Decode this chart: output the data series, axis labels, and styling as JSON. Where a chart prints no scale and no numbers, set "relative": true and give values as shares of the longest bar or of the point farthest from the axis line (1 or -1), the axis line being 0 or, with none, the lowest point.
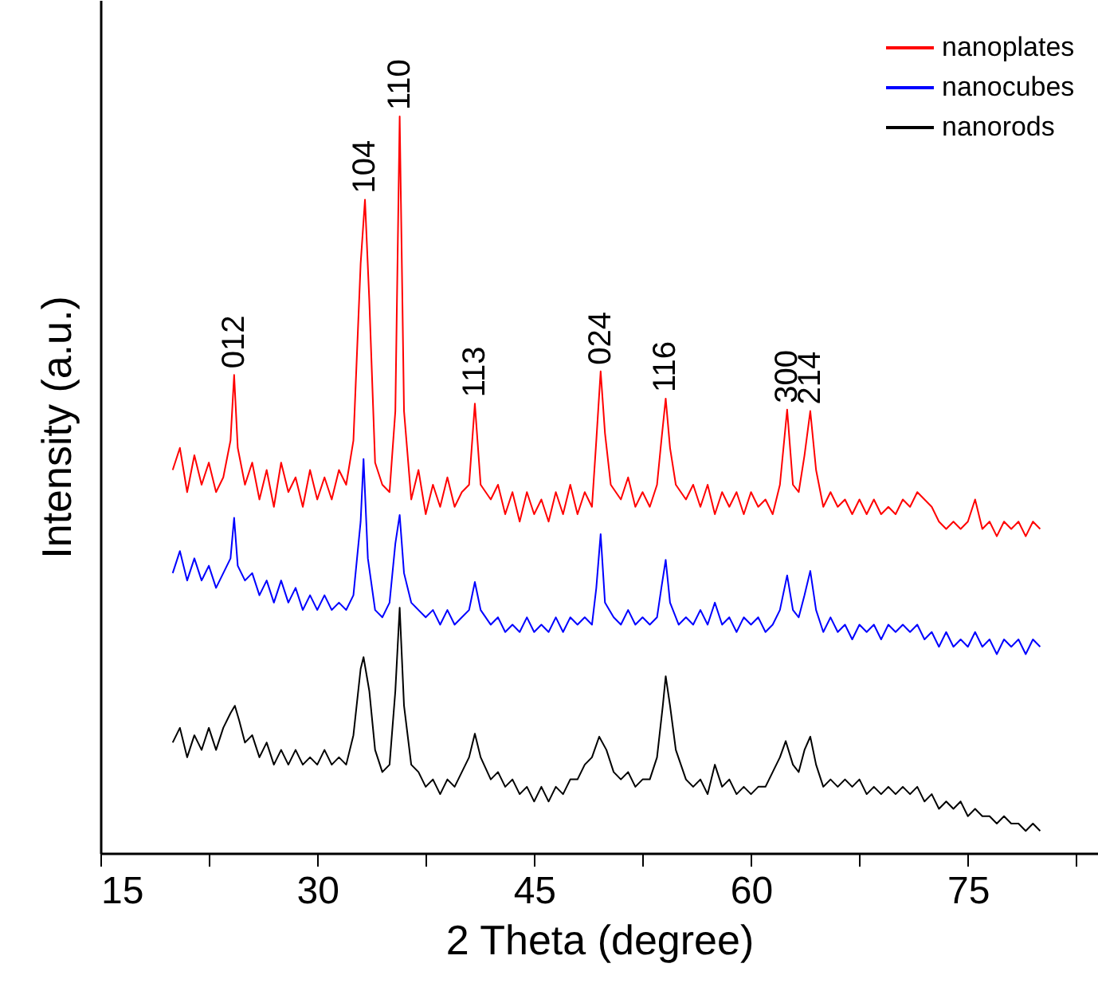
{
  "chart_data": {
    "type": "line",
    "xlabel": "2 Theta (degree)",
    "ylabel": "Intensity (a.u.)",
    "relative": true,
    "tick_labels": "x",
    "legend": "top right",
    "xlim": [
      15,
      84
    ],
    "xticks": [
      15,
      {
        "value": 22.5,
        "label": null
      },
      30,
      {
        "value": 37.5,
        "label": null
      },
      45,
      {
        "value": 52.5,
        "label": null
      },
      60,
      {
        "value": 67.5,
        "label": null
      },
      75,
      {
        "value": 82.5,
        "label": null
      }
    ],
    "annotations": [
      {
        "text": "012",
        "x": 24.25,
        "y": 0.649
      },
      {
        "text": "104",
        "x": 33.3,
        "y": 0.887
      },
      {
        "text": "110",
        "x": 35.7,
        "y": 1.0
      },
      {
        "text": "113",
        "x": 40.9,
        "y": 0.61
      },
      {
        "text": "024",
        "x": 49.6,
        "y": 0.654
      },
      {
        "text": "116",
        "x": 54.1,
        "y": 0.617
      },
      {
        "text": "300",
        "x": 62.5,
        "y": 0.602
      },
      {
        "text": "214",
        "x": 64.1,
        "y": 0.6
      }
    ],
    "series": [
      {
        "name": "nanoplates",
        "color": "#ff0000",
        "x": [
          20,
          20.5,
          21,
          21.5,
          22,
          22.5,
          23,
          23.5,
          24,
          24.25,
          24.5,
          25,
          25.5,
          26,
          26.5,
          27,
          27.5,
          28,
          28.5,
          29,
          29.5,
          30,
          30.5,
          31,
          31.5,
          32,
          32.5,
          33,
          33.3,
          33.6,
          34,
          34.5,
          35,
          35.4,
          35.7,
          36,
          36.5,
          37,
          37.5,
          38,
          38.5,
          39,
          39.5,
          40,
          40.5,
          40.9,
          41.3,
          42,
          42.5,
          43,
          43.5,
          44,
          44.5,
          45,
          45.5,
          46,
          46.5,
          47,
          47.5,
          48,
          48.5,
          49,
          49.3,
          49.6,
          49.9,
          50.3,
          51,
          51.5,
          52,
          52.5,
          53,
          53.5,
          53.8,
          54.1,
          54.4,
          54.8,
          55.5,
          56,
          56.5,
          57,
          57.5,
          58,
          58.5,
          59,
          59.5,
          60,
          60.5,
          61,
          61.5,
          62,
          62.5,
          62.9,
          63.3,
          63.7,
          64.1,
          64.5,
          65,
          65.5,
          66,
          66.5,
          67,
          67.5,
          68,
          68.5,
          69,
          69.5,
          70,
          70.5,
          71,
          71.5,
          72,
          72.5,
          73,
          73.5,
          74,
          74.5,
          75,
          75.5,
          76,
          76.5,
          77,
          77.5,
          78,
          78.5,
          79,
          79.5,
          80
        ],
        "values": [
          0.52,
          0.55,
          0.49,
          0.54,
          0.5,
          0.53,
          0.49,
          0.51,
          0.56,
          0.649,
          0.55,
          0.5,
          0.53,
          0.48,
          0.52,
          0.47,
          0.53,
          0.49,
          0.51,
          0.47,
          0.52,
          0.48,
          0.51,
          0.48,
          0.52,
          0.5,
          0.56,
          0.8,
          0.887,
          0.75,
          0.53,
          0.5,
          0.49,
          0.6,
          1.0,
          0.6,
          0.48,
          0.52,
          0.46,
          0.5,
          0.47,
          0.51,
          0.47,
          0.49,
          0.5,
          0.61,
          0.5,
          0.48,
          0.5,
          0.46,
          0.49,
          0.45,
          0.49,
          0.46,
          0.48,
          0.45,
          0.49,
          0.46,
          0.5,
          0.46,
          0.49,
          0.47,
          0.56,
          0.654,
          0.57,
          0.5,
          0.48,
          0.51,
          0.47,
          0.49,
          0.47,
          0.5,
          0.56,
          0.617,
          0.55,
          0.5,
          0.48,
          0.5,
          0.47,
          0.5,
          0.46,
          0.49,
          0.47,
          0.49,
          0.46,
          0.49,
          0.47,
          0.48,
          0.46,
          0.5,
          0.602,
          0.5,
          0.49,
          0.54,
          0.6,
          0.52,
          0.47,
          0.49,
          0.47,
          0.48,
          0.46,
          0.48,
          0.46,
          0.48,
          0.46,
          0.47,
          0.46,
          0.48,
          0.47,
          0.49,
          0.48,
          0.47,
          0.45,
          0.44,
          0.45,
          0.44,
          0.45,
          0.48,
          0.44,
          0.45,
          0.43,
          0.45,
          0.44,
          0.45,
          0.43,
          0.45,
          0.44
        ]
      },
      {
        "name": "nanocubes",
        "color": "#0000ff",
        "x": [
          20,
          20.5,
          21,
          21.5,
          22,
          22.5,
          23,
          23.5,
          24,
          24.25,
          24.5,
          25,
          25.5,
          26,
          26.5,
          27,
          27.5,
          28,
          28.5,
          29,
          29.5,
          30,
          30.5,
          31,
          31.5,
          32,
          32.5,
          33,
          33.2,
          33.5,
          34,
          34.5,
          35,
          35.4,
          35.7,
          36,
          36.5,
          37,
          37.5,
          38,
          38.5,
          39,
          39.5,
          40,
          40.5,
          40.9,
          41.3,
          42,
          42.5,
          43,
          43.5,
          44,
          44.5,
          45,
          45.5,
          46,
          46.5,
          47,
          47.5,
          48,
          48.5,
          49,
          49.3,
          49.6,
          49.9,
          50.5,
          51,
          51.5,
          52,
          52.5,
          53,
          53.5,
          53.8,
          54.1,
          54.4,
          55,
          55.5,
          56,
          56.5,
          57,
          57.5,
          58,
          58.5,
          59,
          59.5,
          60,
          60.5,
          61,
          61.5,
          62,
          62.5,
          62.9,
          63.3,
          63.7,
          64.1,
          64.5,
          65,
          65.5,
          66,
          66.5,
          67,
          67.5,
          68,
          68.5,
          69,
          69.5,
          70,
          70.5,
          71,
          71.5,
          72,
          72.5,
          73,
          73.5,
          74,
          74.5,
          75,
          75.5,
          76,
          76.5,
          77,
          77.5,
          78,
          78.5,
          79,
          79.5,
          80
        ],
        "values": [
          0.38,
          0.41,
          0.37,
          0.4,
          0.37,
          0.39,
          0.36,
          0.38,
          0.4,
          0.455,
          0.39,
          0.37,
          0.38,
          0.35,
          0.37,
          0.34,
          0.37,
          0.34,
          0.36,
          0.33,
          0.35,
          0.33,
          0.35,
          0.33,
          0.34,
          0.33,
          0.35,
          0.45,
          0.535,
          0.4,
          0.33,
          0.32,
          0.34,
          0.42,
          0.459,
          0.38,
          0.34,
          0.33,
          0.32,
          0.33,
          0.31,
          0.33,
          0.31,
          0.32,
          0.33,
          0.368,
          0.33,
          0.31,
          0.32,
          0.3,
          0.31,
          0.3,
          0.32,
          0.3,
          0.31,
          0.3,
          0.32,
          0.3,
          0.32,
          0.31,
          0.32,
          0.31,
          0.36,
          0.433,
          0.34,
          0.32,
          0.31,
          0.33,
          0.31,
          0.32,
          0.31,
          0.32,
          0.36,
          0.398,
          0.34,
          0.31,
          0.32,
          0.31,
          0.33,
          0.31,
          0.34,
          0.31,
          0.32,
          0.3,
          0.32,
          0.31,
          0.32,
          0.3,
          0.31,
          0.33,
          0.377,
          0.33,
          0.32,
          0.35,
          0.383,
          0.33,
          0.3,
          0.32,
          0.3,
          0.31,
          0.29,
          0.31,
          0.3,
          0.31,
          0.29,
          0.31,
          0.3,
          0.31,
          0.3,
          0.31,
          0.29,
          0.3,
          0.28,
          0.3,
          0.28,
          0.29,
          0.28,
          0.3,
          0.28,
          0.29,
          0.27,
          0.29,
          0.28,
          0.29,
          0.27,
          0.29,
          0.28
        ]
      },
      {
        "name": "nanorods",
        "color": "#000000",
        "x": [
          20,
          20.5,
          21,
          21.5,
          22,
          22.5,
          23,
          23.5,
          24,
          24.3,
          24.6,
          25,
          25.5,
          26,
          26.5,
          27,
          27.5,
          28,
          28.5,
          29,
          29.5,
          30,
          30.5,
          31,
          31.5,
          32,
          32.5,
          33,
          33.2,
          33.6,
          34,
          34.5,
          35,
          35.4,
          35.7,
          36,
          36.5,
          37,
          37.5,
          38,
          38.5,
          39,
          39.5,
          40,
          40.5,
          40.9,
          41.3,
          42,
          42.5,
          43,
          43.5,
          44,
          44.5,
          45,
          45.5,
          46,
          46.5,
          47,
          47.5,
          48,
          48.5,
          49,
          49.5,
          50,
          50.5,
          51,
          51.5,
          52,
          52.5,
          53,
          53.5,
          53.9,
          54.1,
          54.4,
          54.8,
          55.5,
          56,
          56.5,
          57,
          57.5,
          58,
          58.5,
          59,
          59.5,
          60,
          60.5,
          61,
          61.5,
          62,
          62.4,
          62.9,
          63.3,
          63.7,
          64.1,
          64.5,
          65,
          65.5,
          66,
          66.5,
          67,
          67.5,
          68,
          68.5,
          69,
          69.5,
          70,
          70.5,
          71,
          71.5,
          72,
          72.5,
          73,
          73.5,
          74,
          74.5,
          75,
          75.5,
          76,
          76.5,
          77,
          77.5,
          78,
          78.5,
          79,
          79.5,
          80
        ],
        "values": [
          0.15,
          0.17,
          0.13,
          0.16,
          0.14,
          0.17,
          0.14,
          0.17,
          0.19,
          0.2,
          0.18,
          0.15,
          0.16,
          0.13,
          0.15,
          0.12,
          0.14,
          0.12,
          0.14,
          0.12,
          0.13,
          0.12,
          0.14,
          0.12,
          0.13,
          0.12,
          0.16,
          0.25,
          0.266,
          0.22,
          0.14,
          0.11,
          0.12,
          0.22,
          0.333,
          0.2,
          0.12,
          0.11,
          0.09,
          0.1,
          0.08,
          0.1,
          0.09,
          0.11,
          0.13,
          0.162,
          0.13,
          0.1,
          0.11,
          0.09,
          0.1,
          0.08,
          0.09,
          0.07,
          0.09,
          0.07,
          0.09,
          0.08,
          0.1,
          0.1,
          0.12,
          0.13,
          0.158,
          0.14,
          0.11,
          0.1,
          0.11,
          0.09,
          0.1,
          0.1,
          0.13,
          0.2,
          0.24,
          0.2,
          0.14,
          0.1,
          0.09,
          0.1,
          0.08,
          0.12,
          0.09,
          0.1,
          0.08,
          0.09,
          0.08,
          0.09,
          0.09,
          0.11,
          0.13,
          0.152,
          0.12,
          0.11,
          0.14,
          0.158,
          0.12,
          0.09,
          0.1,
          0.09,
          0.1,
          0.09,
          0.1,
          0.08,
          0.09,
          0.08,
          0.09,
          0.08,
          0.09,
          0.08,
          0.09,
          0.07,
          0.08,
          0.06,
          0.07,
          0.06,
          0.07,
          0.05,
          0.06,
          0.05,
          0.05,
          0.04,
          0.05,
          0.04,
          0.04,
          0.03,
          0.04,
          0.03
        ]
      }
    ]
  }
}
